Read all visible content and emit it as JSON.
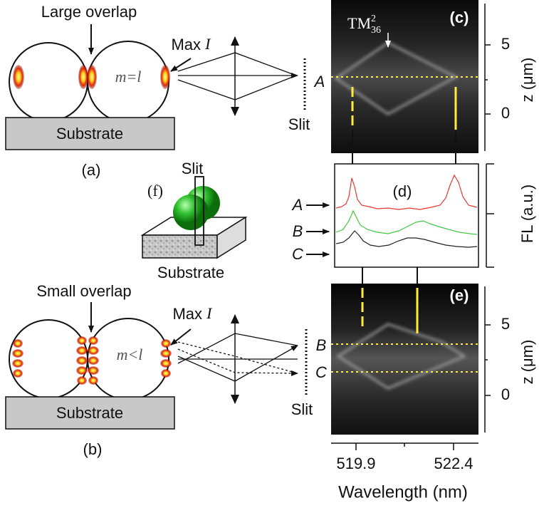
{
  "panel_a": {
    "label": "(a)",
    "annotation": "Large overlap",
    "max_text": "Max",
    "max_symbol": "I",
    "mode": "m=l",
    "substrate": "Substrate",
    "slit": "Slit",
    "position": "A"
  },
  "panel_b": {
    "label": "(b)",
    "annotation": "Small overlap",
    "max_text": "Max",
    "max_symbol": "I",
    "mode": "m<l",
    "substrate": "Substrate",
    "slit": "Slit",
    "positions": [
      "B",
      "C"
    ]
  },
  "panel_c": {
    "label": "(c)",
    "mode_name": "TM",
    "mode_superscript": "2",
    "mode_subscript": "36",
    "y_axis_label": "z (μm)",
    "y_ticks": [
      "5",
      "0"
    ]
  },
  "panel_d": {
    "label": "(d)",
    "y_axis_label": "FL (a.u.)",
    "traces": [
      "A",
      "B",
      "C"
    ]
  },
  "panel_e": {
    "label": "(e)",
    "y_axis_label": "z (μm)",
    "y_ticks": [
      "5",
      "0"
    ]
  },
  "panel_f": {
    "label": "(f)",
    "slit": "Slit",
    "substrate": "Substrate"
  },
  "x_axis": {
    "label": "Wavelength (nm)",
    "ticks": [
      "519.9",
      "522.4"
    ]
  }
}
